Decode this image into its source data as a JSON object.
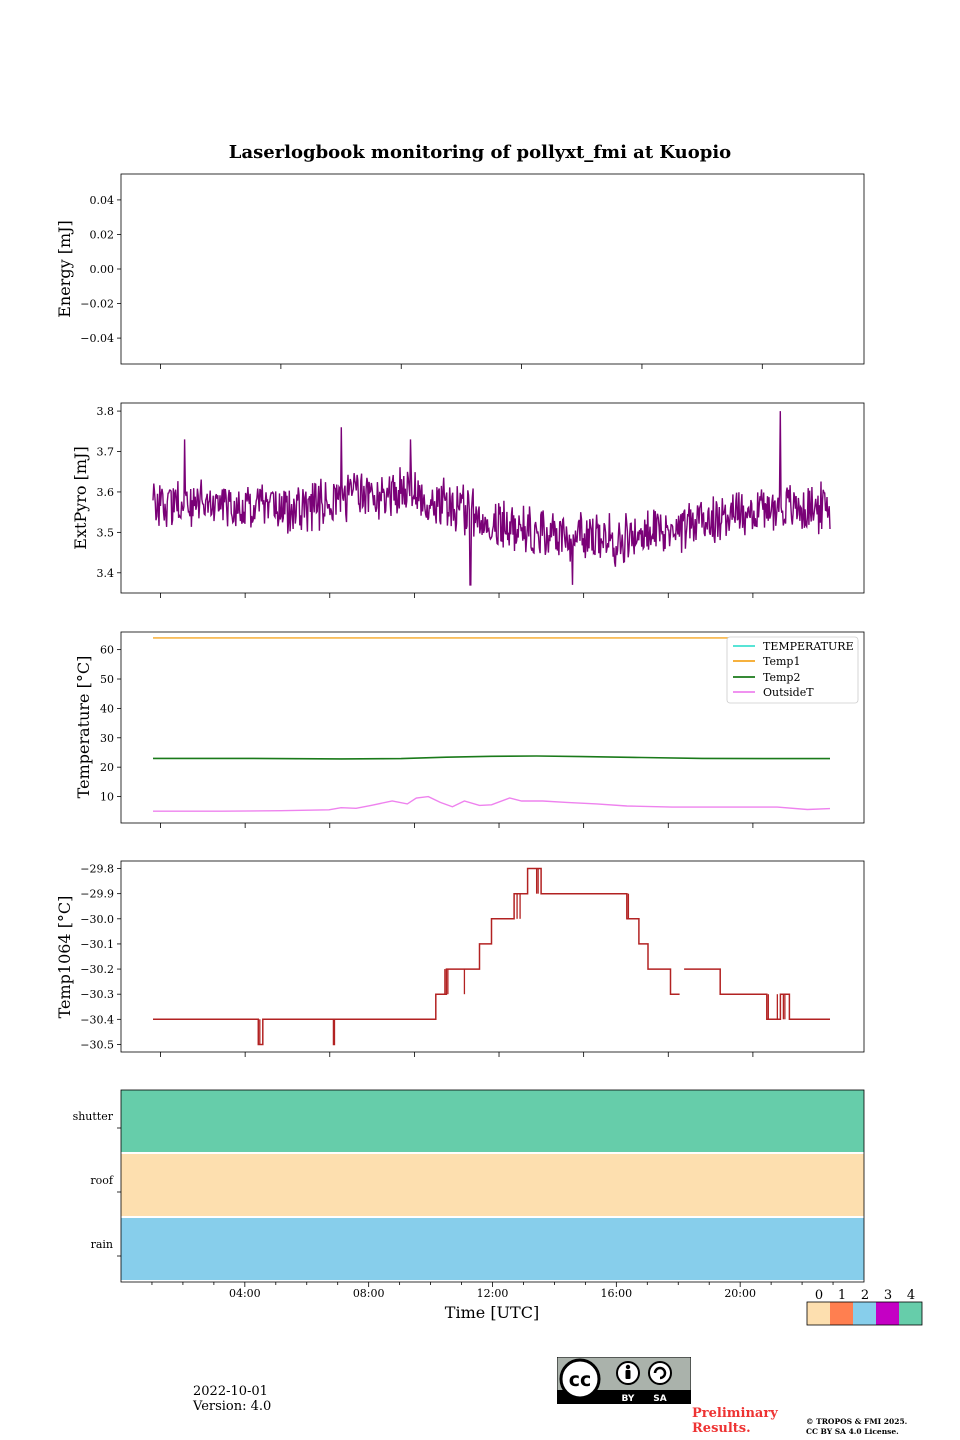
{
  "title": "Laserlogbook monitoring of pollyxt_fmi at Kuopio",
  "colors": {
    "extpyro": "#7a0177",
    "temperature": "#40e0d0",
    "temp1": "#f5a623",
    "temp2": "#1a7a1a",
    "outsideT": "#ee82ee",
    "temp1064": "#b22222",
    "status": [
      "#fddfaf",
      "#ff7f50",
      "#87ceeb",
      "#c400c4",
      "#66cdaa"
    ]
  },
  "footer": {
    "date": "2022-10-01",
    "version": "Version: 4.0",
    "preliminary_line1": "Preliminary",
    "preliminary_line2": "Results.",
    "copyright_line1": "© TROPOS & FMI 2025.",
    "copyright_line2": "CC BY SA 4.0 License.",
    "license_by": "BY",
    "license_sa": "SA"
  },
  "chart_data": [
    {
      "type": "line",
      "title": "Laserlogbook monitoring of pollyxt_fmi at Kuopio",
      "ylabel": "Energy [mJ]",
      "ylim": [
        -0.055,
        0.055
      ],
      "yticks": [
        0.04,
        0.02,
        0.0,
        -0.02,
        -0.04
      ],
      "ytick_labels": [
        "0.04",
        "0.02",
        "0.00",
        "−0.02",
        "−0.04"
      ],
      "series": []
    },
    {
      "type": "line",
      "ylabel": "ExtPyro [mJ]",
      "ylim": [
        3.35,
        3.82
      ],
      "yticks": [
        3.8,
        3.7,
        3.6,
        3.5,
        3.4
      ],
      "ytick_labels": [
        "3.8",
        "3.7",
        "3.6",
        "3.5",
        "3.4"
      ],
      "xlim": [
        0,
        24
      ],
      "series": [
        {
          "name": "ExtPyro",
          "x_range": [
            0.75,
            23.25
          ],
          "baseline": {
            "x": [
              0.75,
              2,
              4,
              6,
              7.5,
              9,
              10.5,
              12,
              13.5,
              15,
              16.5,
              18,
              19.5,
              21,
              22.5,
              23.25
            ],
            "y": [
              3.57,
              3.57,
              3.56,
              3.56,
              3.59,
              3.6,
              3.57,
              3.53,
              3.5,
              3.49,
              3.48,
              3.51,
              3.54,
              3.56,
              3.56,
              3.56
            ]
          },
          "noise_amplitude": 0.06,
          "peaks": [
            {
              "x": 1.8,
              "y": 3.73
            },
            {
              "x": 7.0,
              "y": 3.76
            },
            {
              "x": 9.3,
              "y": 3.73
            },
            {
              "x": 21.6,
              "y": 3.8
            },
            {
              "x": 14.7,
              "y": 3.37
            },
            {
              "x": 11.3,
              "y": 3.37
            }
          ]
        }
      ]
    },
    {
      "type": "line",
      "ylabel": "Temperature [°C]",
      "ylim": [
        1,
        66
      ],
      "yticks": [
        60,
        50,
        40,
        30,
        20,
        10
      ],
      "ytick_labels": [
        "60",
        "50",
        "40",
        "30",
        "20",
        "10"
      ],
      "xlim": [
        0,
        24
      ],
      "legend": [
        "TEMPERATURE",
        "Temp1",
        "Temp2",
        "OutsideT"
      ],
      "legend_position": "top-right",
      "series": [
        {
          "name": "TEMPERATURE",
          "x": [],
          "y": []
        },
        {
          "name": "Temp1",
          "x": [
            0.75,
            23.25
          ],
          "y": [
            64,
            64
          ]
        },
        {
          "name": "Temp2",
          "x": [
            0.75,
            4,
            7,
            9,
            10.5,
            12,
            13.5,
            15,
            17,
            19,
            21,
            23.25
          ],
          "y": [
            23,
            23,
            22.8,
            22.9,
            23.4,
            23.7,
            23.8,
            23.6,
            23.3,
            23,
            22.9,
            22.9
          ]
        },
        {
          "name": "OutsideT",
          "x": [
            0.75,
            3,
            5,
            6.6,
            7,
            7.5,
            8,
            8.7,
            9.2,
            9.5,
            9.9,
            10.3,
            10.7,
            11.1,
            11.6,
            12,
            12.6,
            13,
            13.7,
            14.5,
            15.5,
            16.5,
            18,
            20,
            21.5,
            22.5,
            23.25
          ],
          "y": [
            5,
            5,
            5.2,
            5.5,
            6.2,
            6,
            7,
            8.5,
            7.5,
            9.5,
            10,
            8,
            6.5,
            8.5,
            7,
            7.2,
            9.5,
            8.5,
            8.5,
            8,
            7.5,
            6.8,
            6.4,
            6.4,
            6.4,
            5.6,
            5.9
          ]
        }
      ]
    },
    {
      "type": "line",
      "ylabel": "Temp1064 [°C]",
      "ylim": [
        -30.53,
        -29.77
      ],
      "yticks": [
        -29.8,
        -29.9,
        -30.0,
        -30.1,
        -30.2,
        -30.3,
        -30.4,
        -30.5
      ],
      "ytick_labels": [
        "−29.8",
        "−29.9",
        "−30.0",
        "−30.1",
        "−30.2",
        "−30.3",
        "−30.4",
        "−30.5"
      ],
      "xlim": [
        0,
        24
      ],
      "series": [
        {
          "name": "Temp1064",
          "step_points": [
            [
              0.75,
              -30.4
            ],
            [
              4.25,
              -30.4
            ],
            [
              4.25,
              -30.5
            ],
            [
              4.4,
              -30.5
            ],
            [
              4.4,
              -30.4
            ],
            [
              6.75,
              -30.4
            ],
            [
              6.75,
              -30.5
            ],
            [
              6.78,
              -30.5
            ],
            [
              6.78,
              -30.4
            ],
            [
              10.15,
              -30.4
            ],
            [
              10.15,
              -30.3
            ],
            [
              10.5,
              -30.3
            ],
            [
              10.5,
              -30.2
            ],
            [
              11.6,
              -30.2
            ],
            [
              11.6,
              -30.1
            ],
            [
              12.0,
              -30.1
            ],
            [
              12.0,
              -30.0
            ],
            [
              12.75,
              -30.0
            ],
            [
              12.75,
              -29.9
            ],
            [
              13.2,
              -29.9
            ],
            [
              13.2,
              -29.8
            ],
            [
              13.65,
              -29.8
            ],
            [
              13.65,
              -29.9
            ],
            [
              16.5,
              -29.9
            ],
            [
              16.5,
              -30.0
            ],
            [
              16.9,
              -30.0
            ],
            [
              16.9,
              -30.1
            ],
            [
              17.2,
              -30.1
            ],
            [
              17.2,
              -30.2
            ],
            [
              17.95,
              -30.2
            ],
            [
              17.95,
              -30.3
            ],
            [
              18.25,
              -30.3
            ]
          ],
          "gap": [
            18.25,
            18.4
          ],
          "step_points_2": [
            [
              18.4,
              -30.2
            ],
            [
              19.6,
              -30.2
            ],
            [
              19.6,
              -30.3
            ],
            [
              21.15,
              -30.3
            ],
            [
              21.15,
              -30.4
            ],
            [
              21.6,
              -30.4
            ],
            [
              21.6,
              -30.3
            ],
            [
              21.9,
              -30.3
            ],
            [
              21.9,
              -30.4
            ],
            [
              23.25,
              -30.4
            ]
          ]
        }
      ]
    },
    {
      "type": "heatmap",
      "xlabel": "Time [UTC]",
      "xlim": [
        0,
        24
      ],
      "xticks": [
        4,
        8,
        12,
        16,
        20
      ],
      "xtick_labels": [
        "04:00",
        "08:00",
        "12:00",
        "16:00",
        "20:00"
      ],
      "rows": [
        "shutter",
        "roof",
        "rain"
      ],
      "row_values": [
        4,
        0,
        2
      ],
      "colorbar_ticks": [
        "0",
        "1",
        "2",
        "3",
        "4"
      ]
    }
  ]
}
